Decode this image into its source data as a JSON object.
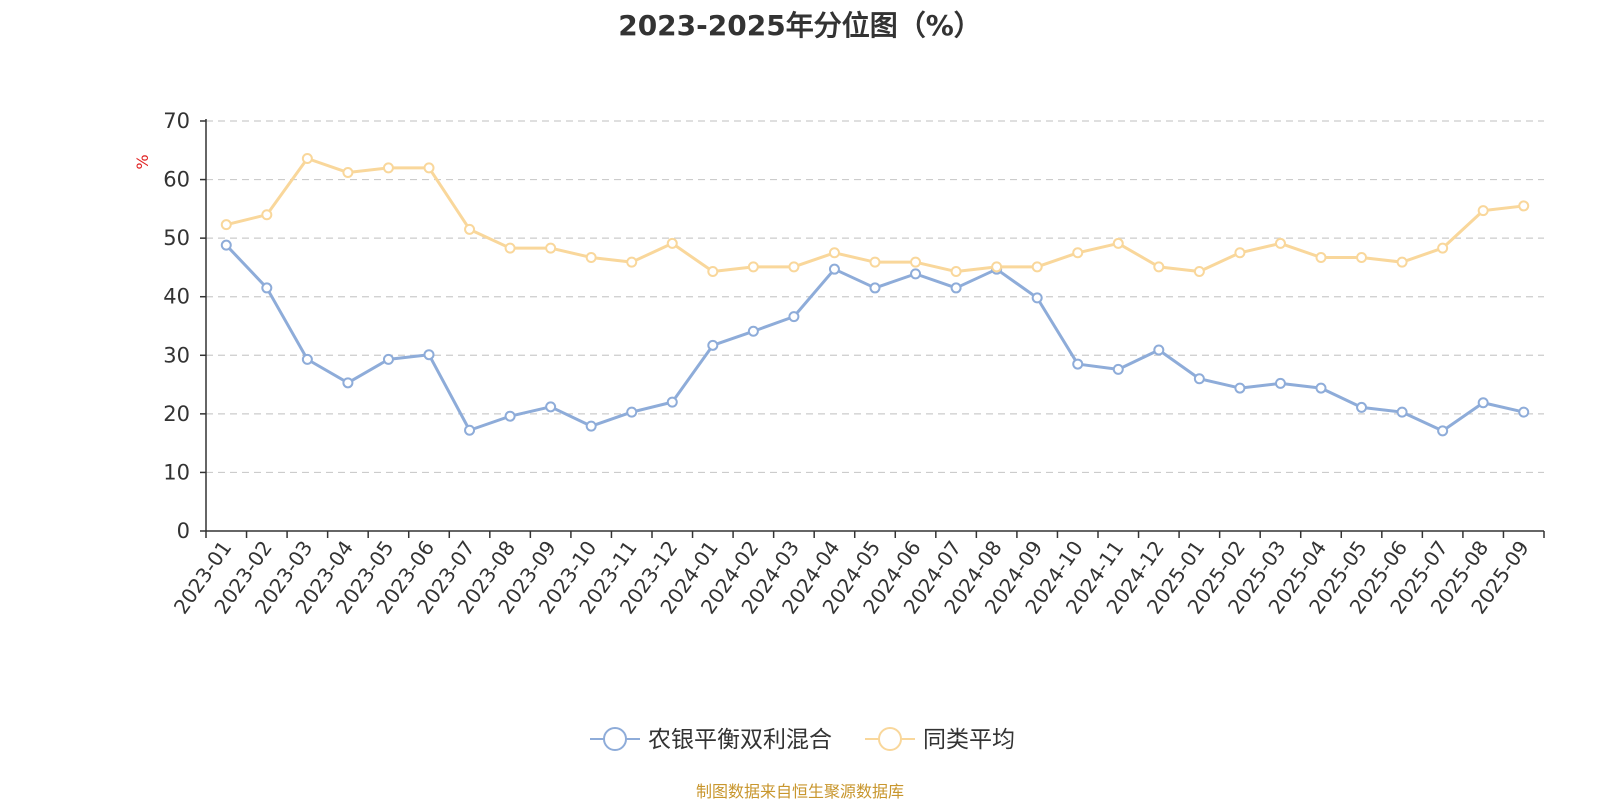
{
  "chart_data": {
    "type": "line",
    "title": "2023-2025年分位图（%）",
    "ylabel": "%",
    "ylim": [
      0,
      70
    ],
    "yticks": [
      0,
      10,
      20,
      30,
      40,
      50,
      60,
      70
    ],
    "grid": true,
    "legend_position": "bottom-center",
    "categories": [
      "2023-01",
      "2023-02",
      "2023-03",
      "2023-04",
      "2023-05",
      "2023-06",
      "2023-07",
      "2023-08",
      "2023-09",
      "2023-10",
      "2023-11",
      "2023-12",
      "2024-01",
      "2024-02",
      "2024-03",
      "2024-04",
      "2024-05",
      "2024-06",
      "2024-07",
      "2024-08",
      "2024-09",
      "2024-10",
      "2024-11",
      "2024-12",
      "2025-01",
      "2025-02",
      "2025-03",
      "2025-04",
      "2025-05",
      "2025-06",
      "2025-07",
      "2025-08",
      "2025-09"
    ],
    "series": [
      {
        "name": "农银平衡双利混合",
        "color": "#8eacd9",
        "values": [
          48.8,
          41.5,
          29.3,
          25.3,
          29.3,
          30.1,
          17.2,
          19.6,
          21.2,
          17.9,
          20.3,
          22.0,
          31.7,
          34.1,
          36.6,
          44.7,
          41.5,
          43.9,
          41.5,
          44.7,
          39.8,
          28.5,
          27.6,
          30.9,
          26.0,
          24.4,
          25.2,
          24.4,
          21.1,
          20.3,
          17.1,
          21.9,
          20.3
        ]
      },
      {
        "name": "同类平均",
        "color": "#f9d79b",
        "values": [
          52.3,
          54.0,
          63.6,
          61.2,
          62.0,
          62.0,
          51.5,
          48.3,
          48.3,
          46.7,
          45.9,
          49.1,
          44.3,
          45.1,
          45.1,
          47.5,
          45.9,
          45.9,
          44.3,
          45.1,
          45.1,
          47.5,
          49.1,
          45.1,
          44.3,
          47.5,
          49.1,
          46.7,
          46.7,
          45.9,
          48.3,
          54.7,
          55.5
        ]
      }
    ]
  },
  "source_note": "制图数据来自恒生聚源数据库"
}
